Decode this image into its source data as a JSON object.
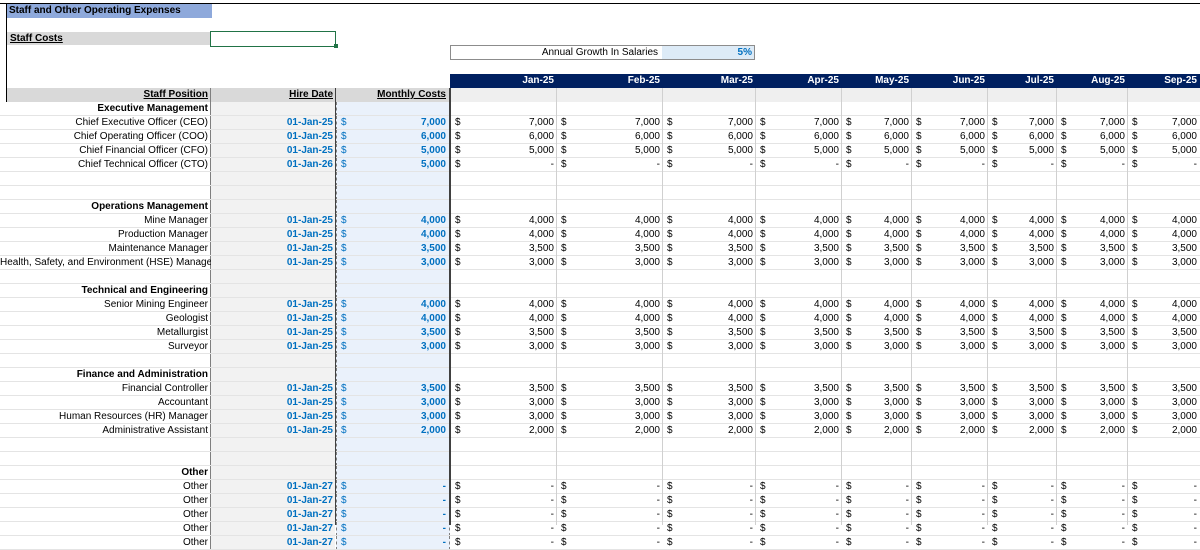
{
  "sheet": {
    "title": "Staff and Other Operating Expenses",
    "staff_costs_label": "Staff Costs",
    "growth_label": "Annual Growth In Salaries",
    "growth_value": "5%"
  },
  "columns": {
    "position": "Staff Position",
    "hire_date": "Hire Date",
    "monthly_costs": "Monthly Costs"
  },
  "months": [
    "Jan-25",
    "Feb-25",
    "Mar-25",
    "Apr-25",
    "May-25",
    "Jun-25",
    "Jul-25",
    "Aug-25",
    "Sep-25"
  ],
  "rows": [
    {
      "type": "section",
      "label": "Executive Management"
    },
    {
      "type": "staff",
      "label": "Chief Executive Officer (CEO)",
      "date": "01-Jan-25",
      "cost": "7,000",
      "vals": [
        "7,000",
        "7,000",
        "7,000",
        "7,000",
        "7,000",
        "7,000",
        "7,000",
        "7,000",
        "7,000"
      ]
    },
    {
      "type": "staff",
      "label": "Chief Operating Officer (COO)",
      "date": "01-Jan-25",
      "cost": "6,000",
      "vals": [
        "6,000",
        "6,000",
        "6,000",
        "6,000",
        "6,000",
        "6,000",
        "6,000",
        "6,000",
        "6,000"
      ]
    },
    {
      "type": "staff",
      "label": "Chief Financial Officer (CFO)",
      "date": "01-Jan-25",
      "cost": "5,000",
      "vals": [
        "5,000",
        "5,000",
        "5,000",
        "5,000",
        "5,000",
        "5,000",
        "5,000",
        "5,000",
        "5,000"
      ]
    },
    {
      "type": "staff",
      "label": "Chief Technical Officer (CTO)",
      "date": "01-Jan-26",
      "cost": "5,000",
      "vals": [
        "-",
        "-",
        "-",
        "-",
        "-",
        "-",
        "-",
        "-",
        "-"
      ]
    },
    {
      "type": "blank"
    },
    {
      "type": "blank"
    },
    {
      "type": "section",
      "label": "Operations Management"
    },
    {
      "type": "staff",
      "label": "Mine Manager",
      "date": "01-Jan-25",
      "cost": "4,000",
      "vals": [
        "4,000",
        "4,000",
        "4,000",
        "4,000",
        "4,000",
        "4,000",
        "4,000",
        "4,000",
        "4,000"
      ]
    },
    {
      "type": "staff",
      "label": "Production Manager",
      "date": "01-Jan-25",
      "cost": "4,000",
      "vals": [
        "4,000",
        "4,000",
        "4,000",
        "4,000",
        "4,000",
        "4,000",
        "4,000",
        "4,000",
        "4,000"
      ]
    },
    {
      "type": "staff",
      "label": "Maintenance Manager",
      "date": "01-Jan-25",
      "cost": "3,500",
      "vals": [
        "3,500",
        "3,500",
        "3,500",
        "3,500",
        "3,500",
        "3,500",
        "3,500",
        "3,500",
        "3,500"
      ]
    },
    {
      "type": "staff",
      "label": "Health, Safety, and Environment (HSE) Manager",
      "date": "01-Jan-25",
      "cost": "3,000",
      "vals": [
        "3,000",
        "3,000",
        "3,000",
        "3,000",
        "3,000",
        "3,000",
        "3,000",
        "3,000",
        "3,000"
      ]
    },
    {
      "type": "blank"
    },
    {
      "type": "section",
      "label": "Technical and Engineering"
    },
    {
      "type": "staff",
      "label": "Senior Mining Engineer",
      "date": "01-Jan-25",
      "cost": "4,000",
      "vals": [
        "4,000",
        "4,000",
        "4,000",
        "4,000",
        "4,000",
        "4,000",
        "4,000",
        "4,000",
        "4,000"
      ]
    },
    {
      "type": "staff",
      "label": "Geologist",
      "date": "01-Jan-25",
      "cost": "4,000",
      "vals": [
        "4,000",
        "4,000",
        "4,000",
        "4,000",
        "4,000",
        "4,000",
        "4,000",
        "4,000",
        "4,000"
      ]
    },
    {
      "type": "staff",
      "label": "Metallurgist",
      "date": "01-Jan-25",
      "cost": "3,500",
      "vals": [
        "3,500",
        "3,500",
        "3,500",
        "3,500",
        "3,500",
        "3,500",
        "3,500",
        "3,500",
        "3,500"
      ]
    },
    {
      "type": "staff",
      "label": "Surveyor",
      "date": "01-Jan-25",
      "cost": "3,000",
      "vals": [
        "3,000",
        "3,000",
        "3,000",
        "3,000",
        "3,000",
        "3,000",
        "3,000",
        "3,000",
        "3,000"
      ]
    },
    {
      "type": "blank"
    },
    {
      "type": "section",
      "label": "Finance and Administration"
    },
    {
      "type": "staff",
      "label": "Financial Controller",
      "date": "01-Jan-25",
      "cost": "3,500",
      "vals": [
        "3,500",
        "3,500",
        "3,500",
        "3,500",
        "3,500",
        "3,500",
        "3,500",
        "3,500",
        "3,500"
      ]
    },
    {
      "type": "staff",
      "label": "Accountant",
      "date": "01-Jan-25",
      "cost": "3,000",
      "vals": [
        "3,000",
        "3,000",
        "3,000",
        "3,000",
        "3,000",
        "3,000",
        "3,000",
        "3,000",
        "3,000"
      ]
    },
    {
      "type": "staff",
      "label": "Human Resources (HR) Manager",
      "date": "01-Jan-25",
      "cost": "3,000",
      "vals": [
        "3,000",
        "3,000",
        "3,000",
        "3,000",
        "3,000",
        "3,000",
        "3,000",
        "3,000",
        "3,000"
      ]
    },
    {
      "type": "staff",
      "label": "Administrative Assistant",
      "date": "01-Jan-25",
      "cost": "2,000",
      "vals": [
        "2,000",
        "2,000",
        "2,000",
        "2,000",
        "2,000",
        "2,000",
        "2,000",
        "2,000",
        "2,000"
      ]
    },
    {
      "type": "blank"
    },
    {
      "type": "blank"
    },
    {
      "type": "section",
      "label": "Other"
    },
    {
      "type": "staff",
      "label": "Other",
      "date": "01-Jan-27",
      "cost": "-",
      "vals": [
        "-",
        "-",
        "-",
        "-",
        "-",
        "-",
        "-",
        "-",
        "-"
      ]
    },
    {
      "type": "staff",
      "label": "Other",
      "date": "01-Jan-27",
      "cost": "-",
      "vals": [
        "-",
        "-",
        "-",
        "-",
        "-",
        "-",
        "-",
        "-",
        "-"
      ]
    },
    {
      "type": "staff",
      "label": "Other",
      "date": "01-Jan-27",
      "cost": "-",
      "vals": [
        "-",
        "-",
        "-",
        "-",
        "-",
        "-",
        "-",
        "-",
        "-"
      ]
    },
    {
      "type": "staff",
      "label": "Other",
      "date": "01-Jan-27",
      "cost": "-",
      "vals": [
        "-",
        "-",
        "-",
        "-",
        "-",
        "-",
        "-",
        "-",
        "-"
      ]
    },
    {
      "type": "staff",
      "label": "Other",
      "date": "01-Jan-27",
      "cost": "-",
      "vals": [
        "-",
        "-",
        "-",
        "-",
        "-",
        "-",
        "-",
        "-",
        "-"
      ]
    }
  ],
  "currency_symbol": "$"
}
